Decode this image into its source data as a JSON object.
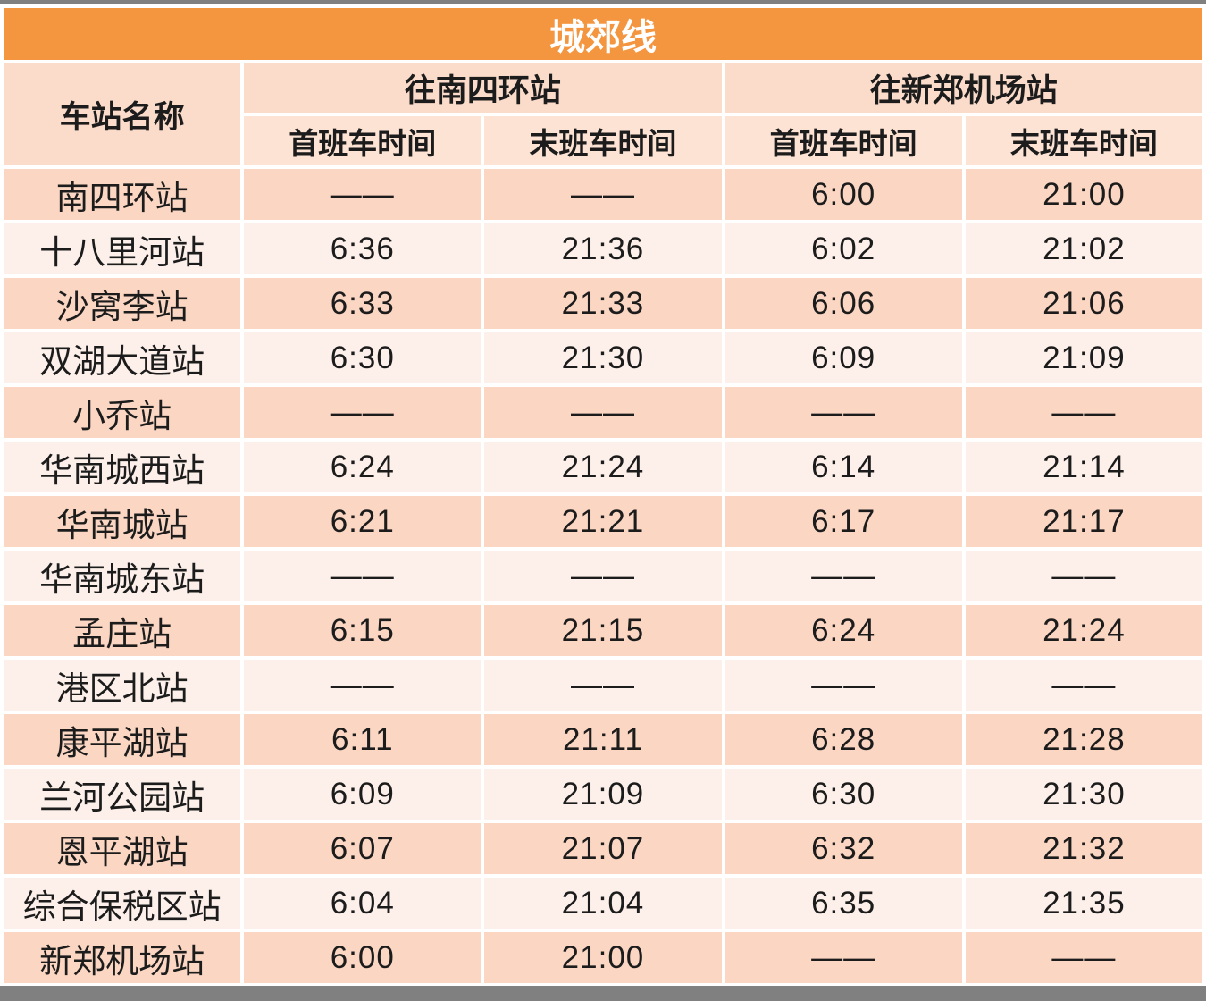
{
  "title": "城郊线",
  "table": {
    "station_col_header": "车站名称",
    "direction_headers": [
      "往南四环站",
      "往新郑机场站"
    ],
    "sub_headers": [
      "首班车时间",
      "末班车时间",
      "首班车时间",
      "末班车时间"
    ],
    "no_service_mark": "——",
    "rows": [
      {
        "station": "南四环站",
        "times": [
          "——",
          "——",
          "6:00",
          "21:00"
        ]
      },
      {
        "station": "十八里河站",
        "times": [
          "6:36",
          "21:36",
          "6:02",
          "21:02"
        ]
      },
      {
        "station": "沙窝李站",
        "times": [
          "6:33",
          "21:33",
          "6:06",
          "21:06"
        ]
      },
      {
        "station": "双湖大道站",
        "times": [
          "6:30",
          "21:30",
          "6:09",
          "21:09"
        ]
      },
      {
        "station": "小乔站",
        "times": [
          "——",
          "——",
          "——",
          "——"
        ]
      },
      {
        "station": "华南城西站",
        "times": [
          "6:24",
          "21:24",
          "6:14",
          "21:14"
        ]
      },
      {
        "station": "华南城站",
        "times": [
          "6:21",
          "21:21",
          "6:17",
          "21:17"
        ]
      },
      {
        "station": "华南城东站",
        "times": [
          "——",
          "——",
          "——",
          "——"
        ]
      },
      {
        "station": "孟庄站",
        "times": [
          "6:15",
          "21:15",
          "6:24",
          "21:24"
        ]
      },
      {
        "station": "港区北站",
        "times": [
          "——",
          "——",
          "——",
          "——"
        ]
      },
      {
        "station": "康平湖站",
        "times": [
          "6:11",
          "21:11",
          "6:28",
          "21:28"
        ]
      },
      {
        "station": "兰河公园站",
        "times": [
          "6:09",
          "21:09",
          "6:30",
          "21:30"
        ]
      },
      {
        "station": "恩平湖站",
        "times": [
          "6:07",
          "21:07",
          "6:32",
          "21:32"
        ]
      },
      {
        "station": "综合保税区站",
        "times": [
          "6:04",
          "21:04",
          "6:35",
          "21:35"
        ]
      },
      {
        "station": "新郑机场站",
        "times": [
          "6:00",
          "21:00",
          "——",
          "——"
        ]
      }
    ]
  },
  "colors": {
    "title_bar": "#f4953f",
    "title_text": "#ffffff",
    "header_row": "#fbdcca",
    "sub_header_row": "#fce3d4",
    "row_odd": "#fbd7c3",
    "row_even": "#fdf0ea",
    "edge_strip": "#808080",
    "cell_gap": "#ffffff",
    "body_text": "#1c1c1c"
  }
}
